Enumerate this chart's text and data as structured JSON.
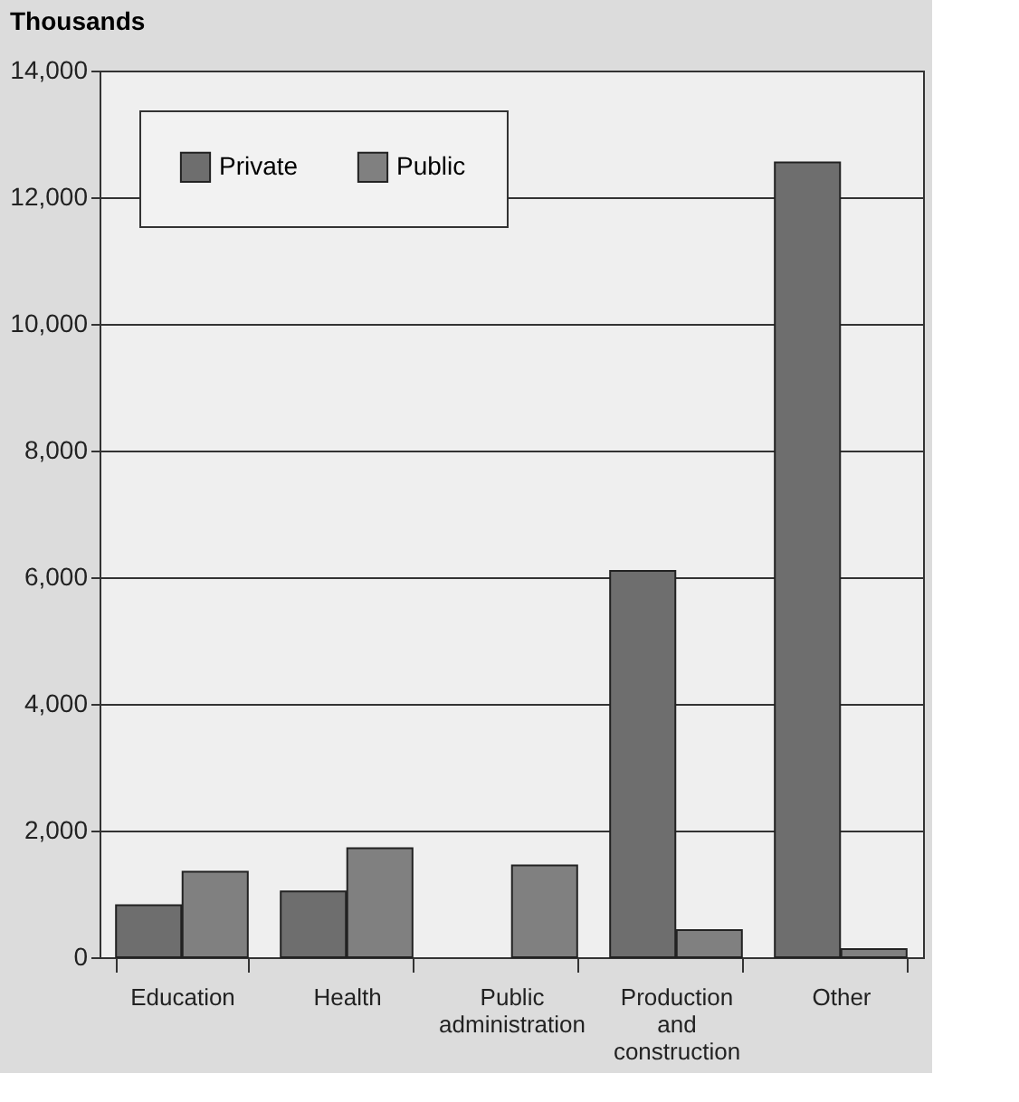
{
  "chart_data": {
    "type": "bar",
    "ylabel": "Thousands",
    "categories": [
      "Education",
      "Health",
      "Public administration",
      "Production and construction",
      "Other"
    ],
    "series": [
      {
        "name": "Private",
        "color": "#6e6e6e",
        "values": [
          820,
          1040,
          null,
          6100,
          12550
        ]
      },
      {
        "name": "Public",
        "color": "#808080",
        "values": [
          1350,
          1720,
          1450,
          430,
          130
        ]
      }
    ],
    "ylim": [
      0,
      14000
    ],
    "yticks": [
      0,
      {
        "value": 2000,
        "label": "2,000"
      },
      {
        "value": 4000,
        "label": "4,000"
      },
      {
        "value": 6000,
        "label": "6,000"
      },
      {
        "value": 8000,
        "label": "8,000"
      },
      {
        "value": 10000,
        "label": "10,000"
      },
      {
        "value": 12000,
        "label": "12,000"
      },
      {
        "value": 14000,
        "label": "14,000"
      }
    ],
    "grid": "y",
    "legend": "top left"
  }
}
